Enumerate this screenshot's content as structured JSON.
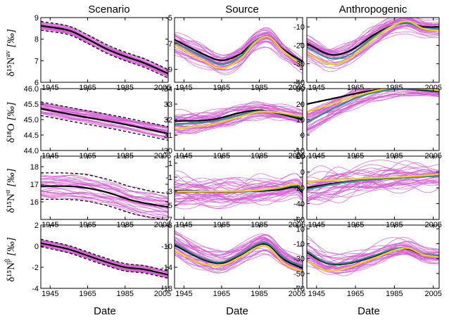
{
  "column_titles": [
    "Scenario",
    "Source",
    "Anthropogenic"
  ],
  "row_labels": [
    {
      "main": "δ¹⁵N",
      "sup": "av",
      "unit": "[‰]"
    },
    {
      "main": "δ¹⁸O",
      "sup": "",
      "unit": "[‰]"
    },
    {
      "main": "δ¹⁵N",
      "sup": "α",
      "unit": "[‰]"
    },
    {
      "main": "δ¹⁵N",
      "sup": "β",
      "unit": "[‰]"
    }
  ],
  "x_axis_label": "Date",
  "colors": {
    "ensemble": "#d25ad2",
    "mean": "#000000",
    "teal": "#2e8b8b",
    "yellow": "#f0d020",
    "bounds": "#000000"
  },
  "chart_data": [
    {
      "type": "line",
      "row": 0,
      "col": 0,
      "xlim": [
        1940,
        2008
      ],
      "ylim": [
        6,
        9
      ],
      "yticks": [
        6,
        7,
        8,
        9
      ],
      "xticks": [
        1945,
        1965,
        1985,
        2005
      ],
      "series": [
        {
          "values": [
            [
              1940,
              8.62
            ],
            [
              1955,
              8.4
            ],
            [
              1965,
              8.0
            ],
            [
              1975,
              7.55
            ],
            [
              1985,
              7.2
            ],
            [
              1995,
              6.9
            ],
            [
              2008,
              6.4
            ]
          ]
        }
      ],
      "bounds": 0.2
    },
    {
      "type": "line",
      "row": 0,
      "col": 1,
      "xlim": [
        1940,
        2008
      ],
      "ylim": [
        -10,
        -5
      ],
      "yticks": [
        -5,
        -7,
        -9
      ],
      "xticks": [
        1945,
        1965,
        1985,
        2005
      ],
      "series": [
        {
          "values": [
            [
              1940,
              -6.9
            ],
            [
              1955,
              -8.0
            ],
            [
              1965,
              -8.6
            ],
            [
              1975,
              -8.0
            ],
            [
              1983,
              -6.8
            ],
            [
              1990,
              -6.5
            ],
            [
              1998,
              -7.6
            ],
            [
              2008,
              -8.6
            ]
          ]
        },
        {
          "values": [
            [
              1940,
              -6.7
            ],
            [
              1955,
              -7.8
            ],
            [
              1965,
              -8.3
            ],
            [
              1975,
              -7.8
            ],
            [
              1983,
              -6.8
            ],
            [
              1990,
              -6.5
            ],
            [
              1998,
              -7.5
            ],
            [
              2008,
              -8.4
            ]
          ]
        },
        {
          "values": [
            [
              1940,
              -7.1
            ],
            [
              1955,
              -8.3
            ],
            [
              1965,
              -8.9
            ],
            [
              1975,
              -8.2
            ],
            [
              1983,
              -6.9
            ],
            [
              1990,
              -6.5
            ],
            [
              1998,
              -7.6
            ],
            [
              2008,
              -8.7
            ]
          ]
        }
      ]
    },
    {
      "type": "line",
      "row": 0,
      "col": 2,
      "xlim": [
        1940,
        2008
      ],
      "ylim": [
        -40,
        -5
      ],
      "yticks": [
        -10,
        -20,
        -30,
        -40
      ],
      "xticks": [
        1945,
        1965,
        1985,
        2005
      ],
      "series": [
        {
          "values": [
            [
              1940,
              -21
            ],
            [
              1952,
              -27
            ],
            [
              1962,
              -25
            ],
            [
              1975,
              -15
            ],
            [
              1985,
              -9
            ],
            [
              1992,
              -8
            ],
            [
              2000,
              -11
            ],
            [
              2008,
              -11
            ]
          ]
        },
        {
          "values": [
            [
              1940,
              -19
            ],
            [
              1952,
              -25
            ],
            [
              1962,
              -23
            ],
            [
              1975,
              -14
            ],
            [
              1985,
              -9
            ],
            [
              1992,
              -8
            ],
            [
              2000,
              -10
            ],
            [
              2008,
              -10
            ]
          ]
        },
        {
          "values": [
            [
              1940,
              -24
            ],
            [
              1952,
              -30
            ],
            [
              1962,
              -27
            ],
            [
              1975,
              -16
            ],
            [
              1985,
              -9
            ],
            [
              1992,
              -7
            ],
            [
              2000,
              -11
            ],
            [
              2008,
              -12
            ]
          ]
        }
      ]
    },
    {
      "type": "line",
      "row": 1,
      "col": 0,
      "xlim": [
        1940,
        2008
      ],
      "ylim": [
        44,
        46
      ],
      "yticks": [
        44.0,
        44.5,
        45.0,
        45.5,
        46.0
      ],
      "xticks": [
        1945,
        1965,
        1985,
        2005
      ],
      "series": [
        {
          "values": [
            [
              1940,
              45.35
            ],
            [
              1960,
              45.12
            ],
            [
              1980,
              44.9
            ],
            [
              2008,
              44.55
            ]
          ]
        }
      ],
      "bounds": 0.22
    },
    {
      "type": "line",
      "row": 1,
      "col": 1,
      "xlim": [
        1940,
        2008
      ],
      "ylim": [
        30,
        34
      ],
      "yticks": [
        30,
        31,
        32,
        33,
        34
      ],
      "xticks": [
        1945,
        1965,
        1985,
        2005
      ],
      "series": [
        {
          "values": [
            [
              1940,
              31.7
            ],
            [
              1960,
              31.9
            ],
            [
              1975,
              32.3
            ],
            [
              1985,
              32.55
            ],
            [
              1995,
              32.45
            ],
            [
              2008,
              32.1
            ]
          ]
        },
        {
          "values": [
            [
              1940,
              31.9
            ],
            [
              1960,
              32.0
            ],
            [
              1975,
              32.45
            ],
            [
              1985,
              32.6
            ],
            [
              1995,
              32.4
            ],
            [
              2008,
              32.0
            ]
          ]
        },
        {
          "values": [
            [
              1940,
              31.4
            ],
            [
              1960,
              31.7
            ],
            [
              1975,
              32.2
            ],
            [
              1985,
              32.5
            ],
            [
              1995,
              32.45
            ],
            [
              2008,
              32.2
            ]
          ]
        }
      ]
    },
    {
      "type": "line",
      "row": 1,
      "col": 2,
      "xlim": [
        1940,
        2008
      ],
      "ylim": [
        -10,
        30
      ],
      "yticks": [
        -10,
        0,
        10,
        20,
        30
      ],
      "xticks": [
        1945,
        1965,
        1985,
        2005
      ],
      "series": [
        {
          "values": [
            [
              1940,
              8
            ],
            [
              1955,
              18
            ],
            [
              1970,
              26
            ],
            [
              1985,
              29.5
            ],
            [
              2000,
              29.5
            ],
            [
              2008,
              28.5
            ]
          ]
        },
        {
          "values": [
            [
              1940,
              20
            ],
            [
              1955,
              24
            ],
            [
              1970,
              28
            ],
            [
              1985,
              30
            ],
            [
              2000,
              29
            ],
            [
              2008,
              28
            ]
          ]
        },
        {
          "values": [
            [
              1940,
              15
            ],
            [
              1955,
              21
            ],
            [
              1970,
              27
            ],
            [
              1985,
              30.5
            ],
            [
              2000,
              30
            ],
            [
              2008,
              29
            ]
          ]
        }
      ]
    },
    {
      "type": "line",
      "row": 2,
      "col": 0,
      "xlim": [
        1940,
        2008
      ],
      "ylim": [
        15,
        18.6
      ],
      "yticks": [
        16,
        17,
        18
      ],
      "xticks": [
        1945,
        1965,
        1985,
        2005
      ],
      "series": [
        {
          "values": [
            [
              1940,
              16.9
            ],
            [
              1960,
              16.85
            ],
            [
              1975,
              16.55
            ],
            [
              1990,
              16.05
            ],
            [
              2008,
              15.7
            ]
          ]
        }
      ],
      "bounds": 0.75
    },
    {
      "type": "line",
      "row": 2,
      "col": 1,
      "xlim": [
        1940,
        2008
      ],
      "ylim": [
        -7,
        2
      ],
      "yticks": [
        1,
        -1,
        -3,
        -5,
        -7
      ],
      "xticks": [
        1945,
        1965,
        1985,
        2005
      ],
      "series": [
        {
          "values": [
            [
              1940,
              -3.1
            ],
            [
              1960,
              -3.1
            ],
            [
              1980,
              -3.0
            ],
            [
              1995,
              -2.6
            ],
            [
              2005,
              -2.2
            ],
            [
              2008,
              -3.0
            ]
          ]
        },
        {
          "values": [
            [
              1940,
              -2.9
            ],
            [
              1960,
              -3.0
            ],
            [
              1980,
              -3.0
            ],
            [
              1995,
              -2.8
            ],
            [
              2005,
              -2.4
            ],
            [
              2008,
              -3.2
            ]
          ]
        },
        {
          "values": [
            [
              1940,
              -3.0
            ],
            [
              1960,
              -3.0
            ],
            [
              1980,
              -2.9
            ],
            [
              1995,
              -2.5
            ],
            [
              2005,
              -2.0
            ],
            [
              2008,
              -2.6
            ]
          ]
        }
      ]
    },
    {
      "type": "line",
      "row": 2,
      "col": 2,
      "xlim": [
        1940,
        2008
      ],
      "ylim": [
        -60,
        20
      ],
      "yticks": [
        20,
        0,
        -20,
        -40,
        -60
      ],
      "xticks": [
        1945,
        1965,
        1985,
        2005
      ],
      "series": [
        {
          "values": [
            [
              1940,
              -22
            ],
            [
              1955,
              -15
            ],
            [
              1970,
              -10
            ],
            [
              1990,
              -7
            ],
            [
              2008,
              -5
            ]
          ]
        },
        {
          "values": [
            [
              1940,
              -20
            ],
            [
              1955,
              -14
            ],
            [
              1970,
              -10
            ],
            [
              1990,
              -7
            ],
            [
              2008,
              -4
            ]
          ]
        },
        {
          "values": [
            [
              1940,
              -12
            ],
            [
              1955,
              -10
            ],
            [
              1970,
              -8
            ],
            [
              1990,
              -6
            ],
            [
              2008,
              -3
            ]
          ]
        }
      ]
    },
    {
      "type": "line",
      "row": 3,
      "col": 0,
      "xlim": [
        1940,
        2008
      ],
      "ylim": [
        -4,
        2
      ],
      "yticks": [
        -4,
        -2,
        0,
        2
      ],
      "xticks": [
        1945,
        1965,
        1985,
        2005
      ],
      "series": [
        {
          "values": [
            [
              1940,
              0.3
            ],
            [
              1955,
              -0.3
            ],
            [
              1965,
              -0.9
            ],
            [
              1975,
              -1.5
            ],
            [
              1985,
              -2.0
            ],
            [
              1995,
              -2.2
            ],
            [
              2008,
              -2.7
            ]
          ]
        }
      ],
      "bounds": 0.35
    },
    {
      "type": "line",
      "row": 3,
      "col": 1,
      "xlim": [
        1940,
        2008
      ],
      "ylim": [
        -18,
        -6
      ],
      "yticks": [
        -6,
        -10,
        -14,
        -18
      ],
      "xticks": [
        1945,
        1965,
        1985,
        2005
      ],
      "series": [
        {
          "values": [
            [
              1940,
              -9.5
            ],
            [
              1955,
              -12.3
            ],
            [
              1965,
              -13.0
            ],
            [
              1975,
              -11.5
            ],
            [
              1985,
              -9.5
            ],
            [
              1990,
              -9.6
            ],
            [
              1998,
              -12.2
            ],
            [
              2008,
              -13.8
            ]
          ]
        },
        {
          "values": [
            [
              1940,
              -9.8
            ],
            [
              1955,
              -12.5
            ],
            [
              1965,
              -13.2
            ],
            [
              1975,
              -11.7
            ],
            [
              1985,
              -9.8
            ],
            [
              1990,
              -9.8
            ],
            [
              1998,
              -12.5
            ],
            [
              2008,
              -14.2
            ]
          ]
        },
        {
          "values": [
            [
              1940,
              -10.8
            ],
            [
              1955,
              -13.3
            ],
            [
              1965,
              -13.6
            ],
            [
              1975,
              -12.0
            ],
            [
              1985,
              -10.0
            ],
            [
              1990,
              -10.2
            ],
            [
              1998,
              -13.2
            ],
            [
              2008,
              -14.8
            ]
          ]
        }
      ]
    },
    {
      "type": "line",
      "row": 3,
      "col": 2,
      "xlim": [
        1940,
        2008
      ],
      "ylim": [
        -70,
        15
      ],
      "yticks": [
        10,
        -10,
        -30,
        -50,
        -70
      ],
      "xticks": [
        1945,
        1965,
        1985,
        2005
      ],
      "series": [
        {
          "values": [
            [
              1940,
              -20
            ],
            [
              1950,
              -35
            ],
            [
              1960,
              -36
            ],
            [
              1972,
              -28
            ],
            [
              1985,
              -17
            ],
            [
              1992,
              -16
            ],
            [
              2000,
              -24
            ],
            [
              2008,
              -26
            ]
          ]
        },
        {
          "values": [
            [
              1940,
              -22
            ],
            [
              1950,
              -36
            ],
            [
              1960,
              -37
            ],
            [
              1972,
              -29
            ],
            [
              1985,
              -18
            ],
            [
              1992,
              -17
            ],
            [
              2000,
              -25
            ],
            [
              2008,
              -27
            ]
          ]
        },
        {
          "values": [
            [
              1940,
              -33
            ],
            [
              1950,
              -46
            ],
            [
              1960,
              -43
            ],
            [
              1972,
              -32
            ],
            [
              1985,
              -19
            ],
            [
              1992,
              -16
            ],
            [
              2000,
              -25
            ],
            [
              2008,
              -28
            ]
          ]
        }
      ]
    }
  ]
}
